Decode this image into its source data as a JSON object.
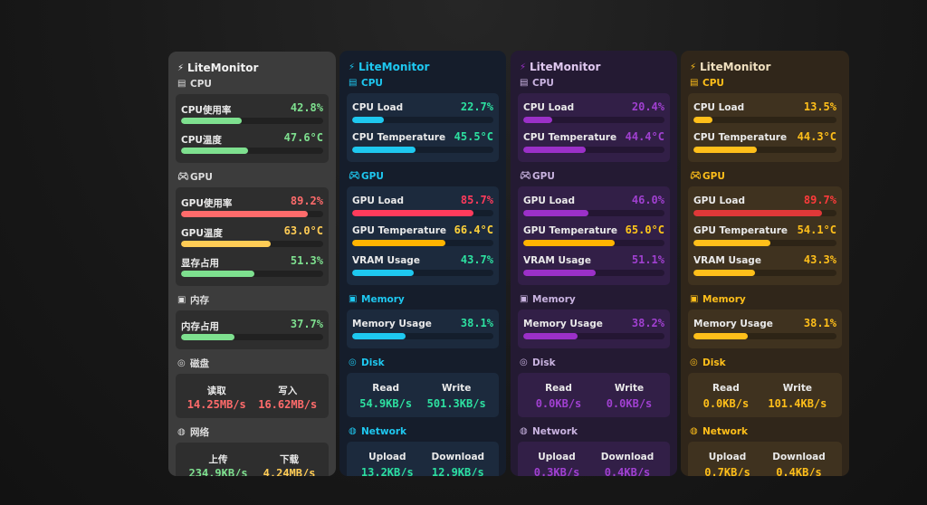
{
  "app_title": "LiteMonitor",
  "panels": [
    {
      "theme": {
        "accent": "#9af0a9",
        "title": "#f2f2f2",
        "section": "#dddddd",
        "card": "#2e2e2e",
        "val_ok": "#7ee08f"
      },
      "sections": {
        "cpu": {
          "label": "CPU",
          "rows": [
            {
              "label": "CPU使用率",
              "value": "42.8%",
              "pct": 0.428,
              "color": "#7ee08f"
            },
            {
              "label": "CPU温度",
              "value": "47.6°C",
              "pct": 0.47,
              "color": "#7ee08f"
            }
          ]
        },
        "gpu": {
          "label": "GPU",
          "rows": [
            {
              "label": "GPU使用率",
              "value": "89.2%",
              "pct": 0.892,
              "color": "#ff6b6b"
            },
            {
              "label": "GPU温度",
              "value": "63.0°C",
              "pct": 0.63,
              "color": "#ffcc55"
            },
            {
              "label": "显存占用",
              "value": "51.3%",
              "pct": 0.513,
              "color": "#7ee08f"
            }
          ]
        },
        "memory": {
          "label": "内存",
          "rows": [
            {
              "label": "内存占用",
              "value": "37.7%",
              "pct": 0.377,
              "color": "#7ee08f"
            }
          ]
        },
        "disk": {
          "label": "磁盘",
          "left_label": "读取",
          "left_value": "14.25MB/s",
          "left_color": "#ff6b6b",
          "right_label": "写入",
          "right_value": "16.62MB/s",
          "right_color": "#ff6b6b"
        },
        "network": {
          "label": "网络",
          "left_label": "上传",
          "left_value": "234.9KB/s",
          "left_color": "#7ee08f",
          "right_label": "下载",
          "right_value": "4.24MB/s",
          "right_color": "#ffcc55"
        }
      }
    },
    {
      "theme": {
        "accent": "#1ec8f0",
        "title": "#1ec8f0",
        "section": "#1ec8f0",
        "card": "#1c2a3d"
      },
      "sections": {
        "cpu": {
          "label": "CPU",
          "rows": [
            {
              "label": "CPU Load",
              "value": "22.7%",
              "pct": 0.227,
              "color": "#2de0a0",
              "bar": "#1ec8f0"
            },
            {
              "label": "CPU Temperature",
              "value": "45.5°C",
              "pct": 0.45,
              "color": "#2de0a0",
              "bar": "#1ec8f0"
            }
          ]
        },
        "gpu": {
          "label": "GPU",
          "rows": [
            {
              "label": "GPU Load",
              "value": "85.7%",
              "pct": 0.857,
              "color": "#ff3b5c",
              "bar": "#ff3b5c"
            },
            {
              "label": "GPU Temperature",
              "value": "66.4°C",
              "pct": 0.66,
              "color": "#ffd23a",
              "bar": "#ffb400"
            },
            {
              "label": "VRAM Usage",
              "value": "43.7%",
              "pct": 0.437,
              "color": "#2de0a0",
              "bar": "#1ec8f0"
            }
          ]
        },
        "memory": {
          "label": "Memory",
          "rows": [
            {
              "label": "Memory Usage",
              "value": "38.1%",
              "pct": 0.381,
              "color": "#2de0a0",
              "bar": "#1ec8f0"
            }
          ]
        },
        "disk": {
          "label": "Disk",
          "left_label": "Read",
          "left_value": "54.9KB/s",
          "left_color": "#2de0a0",
          "right_label": "Write",
          "right_value": "501.3KB/s",
          "right_color": "#2de0a0"
        },
        "network": {
          "label": "Network",
          "left_label": "Upload",
          "left_value": "13.2KB/s",
          "left_color": "#2de0a0",
          "right_label": "Download",
          "right_value": "12.9KB/s",
          "right_color": "#2de0a0"
        }
      }
    },
    {
      "theme": {
        "accent": "#9b30c8",
        "title": "#e0c8f0",
        "section": "#c9b3e0",
        "card": "#321f47"
      },
      "sections": {
        "cpu": {
          "label": "CPU",
          "rows": [
            {
              "label": "CPU Load",
              "value": "20.4%",
              "pct": 0.204,
              "color": "#a040d0",
              "bar": "#9b30c8"
            },
            {
              "label": "CPU Temperature",
              "value": "44.4°C",
              "pct": 0.44,
              "color": "#a040d0",
              "bar": "#9b30c8"
            }
          ]
        },
        "gpu": {
          "label": "GPU",
          "rows": [
            {
              "label": "GPU Load",
              "value": "46.0%",
              "pct": 0.46,
              "color": "#a040d0",
              "bar": "#9b30c8"
            },
            {
              "label": "GPU Temperature",
              "value": "65.0°C",
              "pct": 0.65,
              "color": "#ffc61a",
              "bar": "#ffb400"
            },
            {
              "label": "VRAM Usage",
              "value": "51.1%",
              "pct": 0.511,
              "color": "#a040d0",
              "bar": "#9b30c8"
            }
          ]
        },
        "memory": {
          "label": "Memory",
          "rows": [
            {
              "label": "Memory Usage",
              "value": "38.2%",
              "pct": 0.382,
              "color": "#a040d0",
              "bar": "#9b30c8"
            }
          ]
        },
        "disk": {
          "label": "Disk",
          "left_label": "Read",
          "left_value": "0.0KB/s",
          "left_color": "#a040d0",
          "right_label": "Write",
          "right_value": "0.0KB/s",
          "right_color": "#a040d0"
        },
        "network": {
          "label": "Network",
          "left_label": "Upload",
          "left_value": "0.3KB/s",
          "left_color": "#a040d0",
          "right_label": "Download",
          "right_value": "0.4KB/s",
          "right_color": "#a040d0"
        }
      }
    },
    {
      "theme": {
        "accent": "#ffbf1a",
        "title": "#f0e0c0",
        "section": "#ffbf1a",
        "card": "#3f321f"
      },
      "sections": {
        "cpu": {
          "label": "CPU",
          "rows": [
            {
              "label": "CPU Load",
              "value": "13.5%",
              "pct": 0.135,
              "color": "#ffbf1a",
              "bar": "#ffbf1a"
            },
            {
              "label": "CPU Temperature",
              "value": "44.3°C",
              "pct": 0.44,
              "color": "#ffbf1a",
              "bar": "#ffbf1a"
            }
          ]
        },
        "gpu": {
          "label": "GPU",
          "rows": [
            {
              "label": "GPU Load",
              "value": "89.7%",
              "pct": 0.897,
              "color": "#ff3b3b",
              "bar": "#e03838"
            },
            {
              "label": "GPU Temperature",
              "value": "54.1°C",
              "pct": 0.54,
              "color": "#ffbf1a",
              "bar": "#ffbf1a"
            },
            {
              "label": "VRAM Usage",
              "value": "43.3%",
              "pct": 0.433,
              "color": "#ffbf1a",
              "bar": "#ffbf1a"
            }
          ]
        },
        "memory": {
          "label": "Memory",
          "rows": [
            {
              "label": "Memory Usage",
              "value": "38.1%",
              "pct": 0.381,
              "color": "#ffbf1a",
              "bar": "#ffbf1a"
            }
          ]
        },
        "disk": {
          "label": "Disk",
          "left_label": "Read",
          "left_value": "0.0KB/s",
          "left_color": "#ffbf1a",
          "right_label": "Write",
          "right_value": "101.4KB/s",
          "right_color": "#ffbf1a"
        },
        "network": {
          "label": "Network",
          "left_label": "Upload",
          "left_value": "0.7KB/s",
          "left_color": "#ffbf1a",
          "right_label": "Download",
          "right_value": "0.4KB/s",
          "right_color": "#ffbf1a"
        }
      }
    }
  ],
  "icons": {
    "title": "bolt-icon",
    "cpu": "cpu-chip-icon",
    "gpu": "gamepad-icon",
    "memory": "floppy-disk-icon",
    "disk": "disk-drive-icon",
    "network": "globe-icon"
  }
}
